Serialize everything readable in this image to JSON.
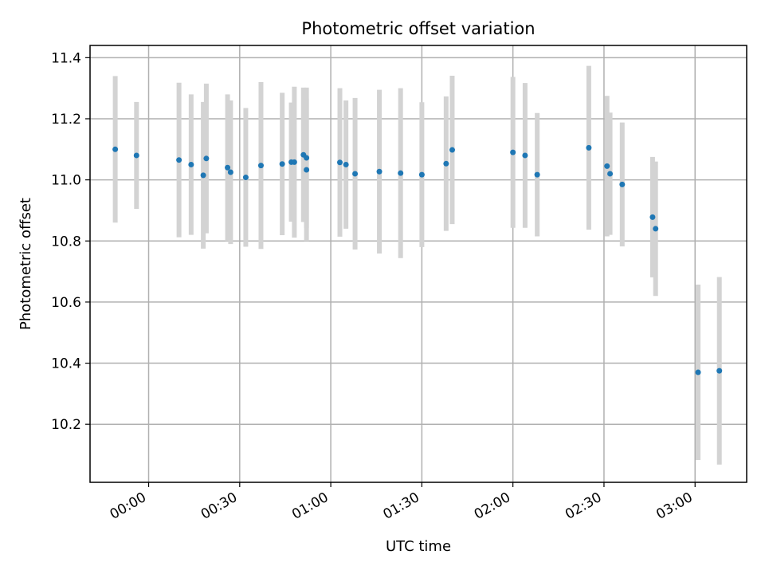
{
  "chart_data": {
    "type": "scatter",
    "title": "Photometric offset variation",
    "xlabel": "UTC time",
    "ylabel": "Photometric offset",
    "x_tick_labels": [
      "00:00",
      "00:30",
      "01:00",
      "01:30",
      "02:00",
      "02:30",
      "03:00"
    ],
    "y_tick_labels": [
      "10.2",
      "10.4",
      "10.6",
      "10.8",
      "11.0",
      "11.2",
      "11.4"
    ],
    "x_ticks_minutes": [
      0,
      30,
      60,
      90,
      120,
      150,
      180
    ],
    "y_ticks": [
      10.2,
      10.4,
      10.6,
      10.8,
      11.0,
      11.2,
      11.4
    ],
    "xlim_minutes": [
      -19.3,
      197.0
    ],
    "ylim": [
      10.01,
      11.44
    ],
    "grid": true,
    "point_color": "#1f77b4",
    "errorbar_color": "#d3d3d3",
    "points": [
      {
        "time": "23:49",
        "y": 11.1,
        "err": 0.24
      },
      {
        "time": "23:56",
        "y": 11.08,
        "err": 0.175
      },
      {
        "time": "00:10",
        "y": 11.065,
        "err": 0.253
      },
      {
        "time": "00:14",
        "y": 11.05,
        "err": 0.23
      },
      {
        "time": "00:18",
        "y": 11.015,
        "err": 0.24
      },
      {
        "time": "00:19",
        "y": 11.07,
        "err": 0.245
      },
      {
        "time": "00:26",
        "y": 11.04,
        "err": 0.24
      },
      {
        "time": "00:27",
        "y": 11.025,
        "err": 0.235
      },
      {
        "time": "00:32",
        "y": 11.008,
        "err": 0.227
      },
      {
        "time": "00:37",
        "y": 11.047,
        "err": 0.273
      },
      {
        "time": "00:44",
        "y": 11.052,
        "err": 0.233
      },
      {
        "time": "00:47",
        "y": 11.058,
        "err": 0.195
      },
      {
        "time": "00:48",
        "y": 11.058,
        "err": 0.247
      },
      {
        "time": "00:51",
        "y": 11.082,
        "err": 0.22
      },
      {
        "time": "00:52",
        "y": 11.072,
        "err": 0.23
      },
      {
        "time": "00:52",
        "y": 11.033,
        "err": 0.233
      },
      {
        "time": "01:03",
        "y": 11.057,
        "err": 0.243
      },
      {
        "time": "01:05",
        "y": 11.05,
        "err": 0.21
      },
      {
        "time": "01:08",
        "y": 11.02,
        "err": 0.248
      },
      {
        "time": "01:16",
        "y": 11.027,
        "err": 0.268
      },
      {
        "time": "01:23",
        "y": 11.022,
        "err": 0.278
      },
      {
        "time": "01:30",
        "y": 11.017,
        "err": 0.237
      },
      {
        "time": "01:38",
        "y": 11.053,
        "err": 0.22
      },
      {
        "time": "01:40",
        "y": 11.098,
        "err": 0.243
      },
      {
        "time": "02:00",
        "y": 11.09,
        "err": 0.247
      },
      {
        "time": "02:04",
        "y": 11.08,
        "err": 0.237
      },
      {
        "time": "02:08",
        "y": 11.017,
        "err": 0.202
      },
      {
        "time": "02:25",
        "y": 11.105,
        "err": 0.268
      },
      {
        "time": "02:31",
        "y": 11.045,
        "err": 0.23
      },
      {
        "time": "02:32",
        "y": 11.02,
        "err": 0.2
      },
      {
        "time": "02:36",
        "y": 10.985,
        "err": 0.203
      },
      {
        "time": "02:46",
        "y": 10.878,
        "err": 0.197
      },
      {
        "time": "02:47",
        "y": 10.84,
        "err": 0.22
      },
      {
        "time": "03:01",
        "y": 10.37,
        "err": 0.287
      },
      {
        "time": "03:08",
        "y": 10.375,
        "err": 0.307
      }
    ]
  }
}
